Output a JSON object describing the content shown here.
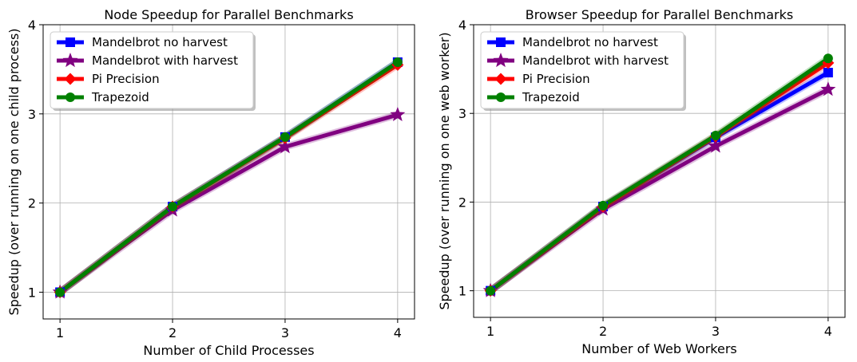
{
  "chart_data": [
    {
      "type": "line",
      "title": "Node Speedup for Parallel Benchmarks",
      "xlabel": "Number of Child Processes",
      "ylabel": "Speedup (over running on one child process)",
      "x": [
        1,
        2,
        3,
        4
      ],
      "xticks": [
        "1",
        "2",
        "3",
        "4"
      ],
      "yticks": [
        "1",
        "2",
        "3",
        "4"
      ],
      "xlim": [
        0.85,
        4.15
      ],
      "ylim": [
        0.7,
        4.0
      ],
      "grid": true,
      "legend_position": "top-left",
      "series": [
        {
          "name": "Mandelbrot no harvest",
          "values": [
            1.0,
            1.96,
            2.74,
            3.58
          ],
          "color": "#0000ff",
          "marker": "square"
        },
        {
          "name": "Mandelbrot with harvest",
          "values": [
            1.0,
            1.92,
            2.63,
            2.99
          ],
          "color": "#800080",
          "marker": "star"
        },
        {
          "name": "Pi Precision",
          "values": [
            1.0,
            1.96,
            2.73,
            3.55
          ],
          "color": "#ff0000",
          "marker": "diamond"
        },
        {
          "name": "Trapezoid",
          "values": [
            1.0,
            1.96,
            2.74,
            3.58
          ],
          "color": "#008000",
          "marker": "circle"
        }
      ]
    },
    {
      "type": "line",
      "title": "Browser Speedup for Parallel Benchmarks",
      "xlabel": "Number of Web Workers",
      "ylabel": "Speedup (over running on one web worker)",
      "x": [
        1,
        2,
        3,
        4
      ],
      "xticks": [
        "1",
        "2",
        "3",
        "4"
      ],
      "yticks": [
        "1",
        "2",
        "3",
        "4"
      ],
      "xlim": [
        0.85,
        4.15
      ],
      "ylim": [
        0.7,
        4.0
      ],
      "grid": true,
      "legend_position": "top-left",
      "series": [
        {
          "name": "Mandelbrot no harvest",
          "values": [
            1.0,
            1.95,
            2.73,
            3.46
          ],
          "color": "#0000ff",
          "marker": "square"
        },
        {
          "name": "Mandelbrot with harvest",
          "values": [
            1.0,
            1.92,
            2.63,
            3.27
          ],
          "color": "#800080",
          "marker": "star"
        },
        {
          "name": "Pi Precision",
          "values": [
            1.0,
            1.95,
            2.74,
            3.57
          ],
          "color": "#ff0000",
          "marker": "diamond"
        },
        {
          "name": "Trapezoid",
          "values": [
            1.0,
            1.96,
            2.75,
            3.62
          ],
          "color": "#008000",
          "marker": "circle"
        }
      ]
    }
  ]
}
